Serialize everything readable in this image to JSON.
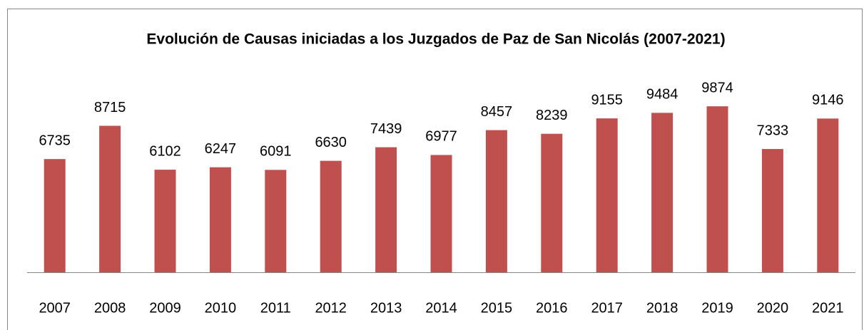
{
  "chart_data": {
    "type": "bar",
    "title": "Evolución de Causas iniciadas a los Juzgados de Paz de San Nicolás (2007-2021)",
    "categories": [
      "2007",
      "2008",
      "2009",
      "2010",
      "2011",
      "2012",
      "2013",
      "2014",
      "2015",
      "2016",
      "2017",
      "2018",
      "2019",
      "2020",
      "2021"
    ],
    "values": [
      6735,
      8715,
      6102,
      6247,
      6091,
      6630,
      7439,
      6977,
      8457,
      8239,
      9155,
      9484,
      9874,
      7333,
      9146
    ],
    "color": "#c0504d",
    "ylim": [
      0,
      12000
    ]
  }
}
